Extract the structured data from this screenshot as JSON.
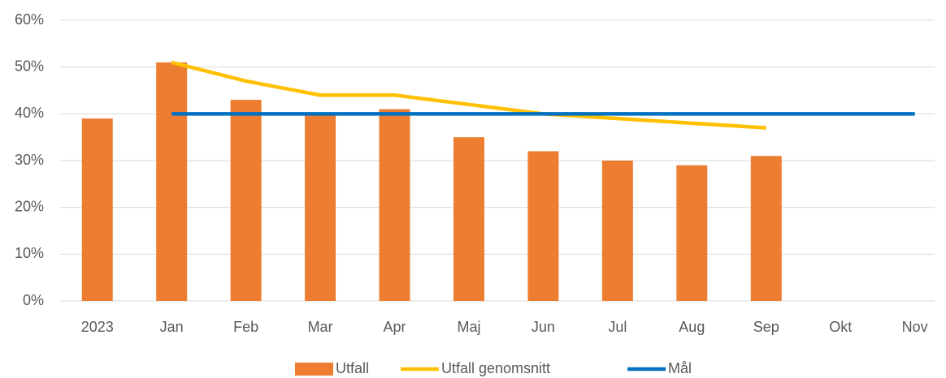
{
  "chart_data": {
    "type": "bar",
    "categories": [
      "2023",
      "Jan",
      "Feb",
      "Mar",
      "Apr",
      "Maj",
      "Jun",
      "Jul",
      "Aug",
      "Sep",
      "Okt",
      "Nov"
    ],
    "series": [
      {
        "name": "Utfall",
        "type": "bar",
        "color": "#ed7d31",
        "values": [
          39,
          51,
          43,
          40,
          41,
          35,
          32,
          30,
          29,
          31,
          null,
          null
        ]
      },
      {
        "name": "Utfall genomsnitt",
        "type": "line",
        "color": "#ffc000",
        "values": [
          null,
          51,
          47,
          44,
          44,
          42,
          40,
          39,
          38,
          37,
          null,
          null
        ]
      },
      {
        "name": "Mål",
        "type": "line",
        "color": "#0070c0",
        "values": [
          null,
          40,
          40,
          40,
          40,
          40,
          40,
          40,
          40,
          40,
          40,
          40
        ]
      }
    ],
    "ylim": [
      0,
      60
    ],
    "yticks": [
      {
        "value": 0,
        "label": "0%"
      },
      {
        "value": 10,
        "label": "10%"
      },
      {
        "value": 20,
        "label": "20%"
      },
      {
        "value": 30,
        "label": "30%"
      },
      {
        "value": 40,
        "label": "40%"
      },
      {
        "value": 50,
        "label": "50%"
      },
      {
        "value": 60,
        "label": "60%"
      }
    ],
    "grid": true,
    "legend": "bottom"
  }
}
